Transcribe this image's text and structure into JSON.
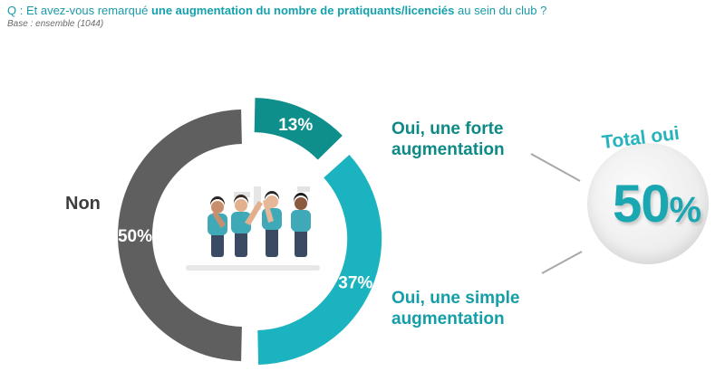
{
  "question": {
    "prefix": "Q : Et avez-vous remarqué ",
    "highlight": "une augmentation du nombre de pratiquants/licenciés",
    "suffix": " au sein du club ?",
    "base": "Base : ensemble (1044)"
  },
  "chart_data": {
    "type": "pie",
    "title": "",
    "segments": [
      {
        "label": "Oui, une forte augmentation",
        "value": 13,
        "display": "13%",
        "color": "#0f8f8c"
      },
      {
        "label": "Oui, une simple augmentation",
        "value": 37,
        "display": "37%",
        "color": "#1ab3bf"
      },
      {
        "label": "Non",
        "value": 50,
        "display": "50%",
        "color": "#5f5f5f"
      }
    ]
  },
  "labels": {
    "forte_line1": "Oui, une forte",
    "forte_line2": "augmentation",
    "simple_line1": "Oui, une simple",
    "simple_line2": "augmentation",
    "non": "Non"
  },
  "total": {
    "label": "Total oui",
    "value": "50",
    "percent_sign": "%"
  },
  "illustration": {
    "name": "team-people-illustration",
    "shirt_color": "#3fa9b8",
    "pants_color": "#3b4a63"
  }
}
